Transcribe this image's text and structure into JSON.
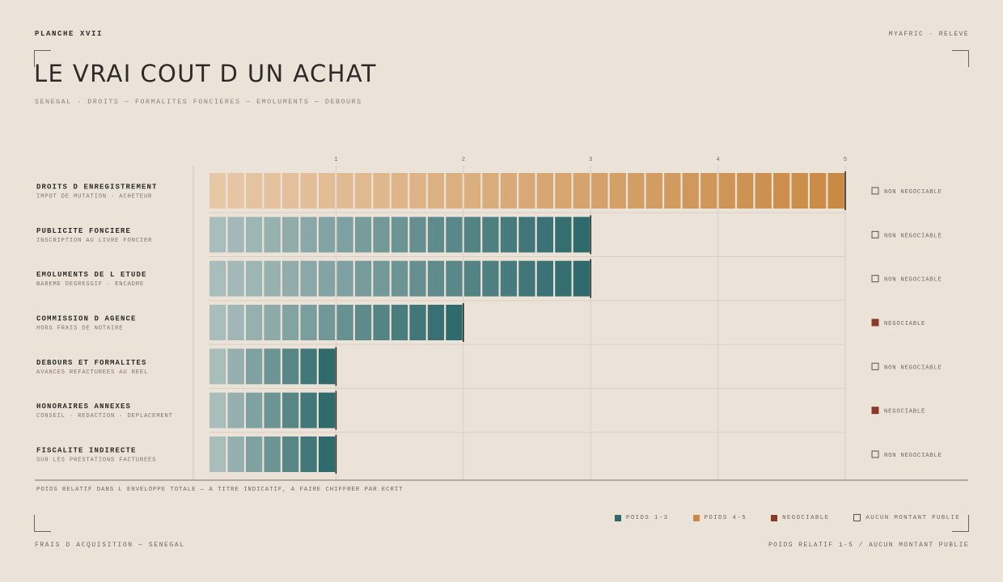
{
  "header": {
    "plate": "PLANCHE XVII",
    "brand": "MYAFRIC · RELEVE",
    "title": "LE VRAI COUT D UN ACHAT",
    "subtitle": "SENEGAL · DROITS — FORMALITES FONCIERES — EMOLUMENTS — DEBOURS"
  },
  "chart_data": {
    "type": "bar",
    "orientation": "horizontal",
    "xlim": [
      0,
      5
    ],
    "ticks": [
      "1",
      "2",
      "3",
      "4",
      "5"
    ],
    "grid": true,
    "categories": [
      {
        "name": "DROITS D ENREGISTREMENT",
        "sub": "IMPOT DE MUTATION · ACHETEUR",
        "value": 5,
        "status": "NON NEGOCIABLE",
        "negotiable": false
      },
      {
        "name": "PUBLICITE FONCIERE",
        "sub": "INSCRIPTION AU LIVRE FONCIER",
        "value": 3,
        "status": "NON NEGOCIABLE",
        "negotiable": false
      },
      {
        "name": "EMOLUMENTS DE L ETUDE",
        "sub": "BAREME DEGRESSIF · ENCADRE",
        "value": 3,
        "status": "NON NEGOCIABLE",
        "negotiable": false
      },
      {
        "name": "COMMISSION D AGENCE",
        "sub": "HORS FRAIS DE NOTAIRE",
        "value": 2,
        "status": "NEGOCIABLE",
        "negotiable": true
      },
      {
        "name": "DEBOURS ET FORMALITES",
        "sub": "AVANCES REFACTUREES AU REEL",
        "value": 1,
        "status": "NON NEGOCIABLE",
        "negotiable": false
      },
      {
        "name": "HONORAIRES ANNEXES",
        "sub": "CONSEIL · REDACTION · DEPLACEMENT",
        "value": 1,
        "status": "NEGOCIABLE",
        "negotiable": true
      },
      {
        "name": "FISCALITE INDIRECTE",
        "sub": "SUR LES PRESTATIONS FACTUREES",
        "value": 1,
        "status": "NON NEGOCIABLE",
        "negotiable": false
      }
    ],
    "colors": {
      "teal_light": "#a9bdbb",
      "teal_dark": "#2f6a6d",
      "ochre_light": "#e6c7a6",
      "ochre_dark": "#c98a45",
      "negotiable": "#8a3a26",
      "grid": "#d9cfc3",
      "axis": "#8f8780"
    }
  },
  "footnote": "POIDS RELATIF DANS L ENVELOPPE TOTALE — A TITRE INDICATIF, A FAIRE CHIFFRER PAR ECRIT",
  "legend": [
    {
      "label": "POIDS 1-3",
      "color": "#2f6a6d",
      "kind": "fill"
    },
    {
      "label": "POIDS 4-5",
      "color": "#c98a45",
      "kind": "fill"
    },
    {
      "label": "NEGOCIABLE",
      "color": "#8a3a26",
      "kind": "fill"
    },
    {
      "label": "AUCUN MONTANT PUBLIE",
      "color": "#5a544f",
      "kind": "outline"
    }
  ],
  "footer": {
    "left": "FRAIS D ACQUISITION — SENEGAL",
    "right": "POIDS RELATIF 1-5 / AUCUN MONTANT PUBLIE"
  }
}
